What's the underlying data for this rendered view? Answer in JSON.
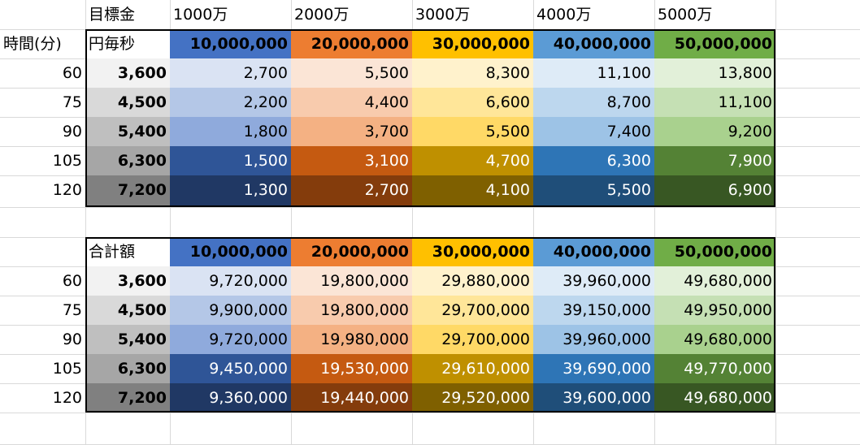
{
  "top": {
    "target_label": "目標金",
    "targets": [
      "1000万",
      "2000万",
      "3000万",
      "4000万",
      "5000万"
    ],
    "time_label": "時間(分)"
  },
  "table1": {
    "title": "円毎秒",
    "headers": [
      "10,000,000",
      "20,000,000",
      "30,000,000",
      "40,000,000",
      "50,000,000"
    ],
    "rows": [
      {
        "minutes": "60",
        "seconds": "3,600",
        "values": [
          "2,700",
          "5,500",
          "8,300",
          "11,100",
          "13,800"
        ]
      },
      {
        "minutes": "75",
        "seconds": "4,500",
        "values": [
          "2,200",
          "4,400",
          "6,600",
          "8,700",
          "11,100"
        ]
      },
      {
        "minutes": "90",
        "seconds": "5,400",
        "values": [
          "1,800",
          "3,700",
          "5,500",
          "7,400",
          "9,200"
        ]
      },
      {
        "minutes": "105",
        "seconds": "6,300",
        "values": [
          "1,500",
          "3,100",
          "4,700",
          "6,300",
          "7,900"
        ]
      },
      {
        "minutes": "120",
        "seconds": "7,200",
        "values": [
          "1,300",
          "2,700",
          "4,100",
          "5,500",
          "6,900"
        ]
      }
    ]
  },
  "table2": {
    "title": "合計額",
    "headers": [
      "10,000,000",
      "20,000,000",
      "30,000,000",
      "40,000,000",
      "50,000,000"
    ],
    "rows": [
      {
        "minutes": "60",
        "seconds": "3,600",
        "values": [
          "9,720,000",
          "19,800,000",
          "29,880,000",
          "39,960,000",
          "49,680,000"
        ]
      },
      {
        "minutes": "75",
        "seconds": "4,500",
        "values": [
          "9,900,000",
          "19,800,000",
          "29,700,000",
          "39,150,000",
          "49,950,000"
        ]
      },
      {
        "minutes": "90",
        "seconds": "5,400",
        "values": [
          "9,720,000",
          "19,980,000",
          "29,700,000",
          "39,960,000",
          "49,680,000"
        ]
      },
      {
        "minutes": "105",
        "seconds": "6,300",
        "values": [
          "9,450,000",
          "19,530,000",
          "29,610,000",
          "39,690,000",
          "49,770,000"
        ]
      },
      {
        "minutes": "120",
        "seconds": "7,200",
        "values": [
          "9,360,000",
          "19,440,000",
          "29,520,000",
          "39,600,000",
          "49,680,000"
        ]
      }
    ]
  },
  "colors": {
    "header_fill": [
      "#4472c4",
      "#ed7d31",
      "#ffc000",
      "#5b9bd5",
      "#70ad47"
    ],
    "seconds_fill": [
      "#f2f2f2",
      "#d9d9d9",
      "#bfbfbf",
      "#a6a6a6",
      "#808080"
    ],
    "value_fill": [
      [
        "#dae3f3",
        "#fbe5d6",
        "#fff2cc",
        "#deebf7",
        "#e2f0d9"
      ],
      [
        "#b4c7e7",
        "#f8cbad",
        "#ffe699",
        "#bdd7ee",
        "#c5e0b4"
      ],
      [
        "#8faadc",
        "#f4b183",
        "#ffd966",
        "#9dc3e6",
        "#a9d18e"
      ],
      [
        "#2f5597",
        "#c55a11",
        "#bf9000",
        "#2e75b6",
        "#548235"
      ],
      [
        "#203864",
        "#843c0c",
        "#7f6000",
        "#1f4e79",
        "#385723"
      ]
    ],
    "white_text_rows": [
      3,
      4
    ]
  }
}
